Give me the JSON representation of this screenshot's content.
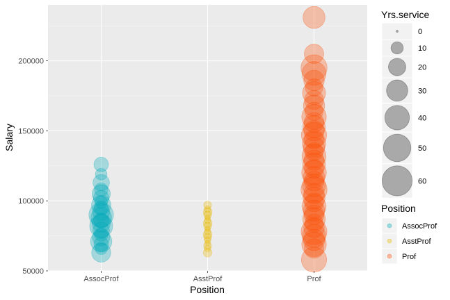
{
  "chart_data": {
    "type": "scatter",
    "x_categories": [
      "AssocProf",
      "AsstProf",
      "Prof"
    ],
    "xlabel": "Position",
    "ylabel": "Salary",
    "ylim": [
      50000,
      240000
    ],
    "yticks": [
      50000,
      100000,
      150000,
      200000
    ],
    "ytick_labels": [
      "50000",
      "100000",
      "150000",
      "200000"
    ],
    "grid": true,
    "point_alpha": 0.3,
    "size_legend": {
      "title": "Yrs.service",
      "values": [
        0,
        10,
        20,
        30,
        40,
        50,
        60
      ],
      "labels": [
        "0",
        "10",
        "20",
        "30",
        "40",
        "50",
        "60"
      ],
      "placement": "right"
    },
    "color_legend": {
      "title": "Position",
      "placement": "right",
      "entries": [
        {
          "label": "AssocProf",
          "color": "#00A9B8"
        },
        {
          "label": "AsstProf",
          "color": "#E7B800"
        },
        {
          "label": "Prof",
          "color": "#FC4E07"
        }
      ]
    },
    "series": [
      {
        "category": "AssocProf",
        "color": "#00A9B8",
        "points": [
          {
            "y": 126000,
            "s": 14
          },
          {
            "y": 119000,
            "s": 9
          },
          {
            "y": 113000,
            "s": 18
          },
          {
            "y": 108000,
            "s": 12
          },
          {
            "y": 105000,
            "s": 22
          },
          {
            "y": 102000,
            "s": 16
          },
          {
            "y": 99000,
            "s": 10
          },
          {
            "y": 97000,
            "s": 25
          },
          {
            "y": 95000,
            "s": 13
          },
          {
            "y": 92000,
            "s": 19
          },
          {
            "y": 90000,
            "s": 40
          },
          {
            "y": 88000,
            "s": 28
          },
          {
            "y": 86000,
            "s": 15
          },
          {
            "y": 84000,
            "s": 22
          },
          {
            "y": 82000,
            "s": 35
          },
          {
            "y": 79000,
            "s": 18
          },
          {
            "y": 76000,
            "s": 12
          },
          {
            "y": 74000,
            "s": 20
          },
          {
            "y": 71000,
            "s": 30
          },
          {
            "y": 69000,
            "s": 14
          },
          {
            "y": 66000,
            "s": 10
          },
          {
            "y": 63000,
            "s": 24
          }
        ]
      },
      {
        "category": "AsstProf",
        "color": "#E7B800",
        "points": [
          {
            "y": 97000,
            "s": 4
          },
          {
            "y": 94000,
            "s": 3
          },
          {
            "y": 92000,
            "s": 5
          },
          {
            "y": 90000,
            "s": 4
          },
          {
            "y": 88000,
            "s": 2
          },
          {
            "y": 86000,
            "s": 3
          },
          {
            "y": 84000,
            "s": 5
          },
          {
            "y": 82000,
            "s": 4
          },
          {
            "y": 80000,
            "s": 2
          },
          {
            "y": 78000,
            "s": 3
          },
          {
            "y": 76000,
            "s": 5
          },
          {
            "y": 74000,
            "s": 4
          },
          {
            "y": 72000,
            "s": 3
          },
          {
            "y": 70000,
            "s": 2
          },
          {
            "y": 68000,
            "s": 4
          },
          {
            "y": 66000,
            "s": 3
          },
          {
            "y": 63000,
            "s": 5
          }
        ]
      },
      {
        "category": "Prof",
        "color": "#FC4E07",
        "points": [
          {
            "y": 231000,
            "s": 32
          },
          {
            "y": 205000,
            "s": 25
          },
          {
            "y": 195000,
            "s": 45
          },
          {
            "y": 191000,
            "s": 38
          },
          {
            "y": 186000,
            "s": 28
          },
          {
            "y": 181000,
            "s": 20
          },
          {
            "y": 177000,
            "s": 35
          },
          {
            "y": 172000,
            "s": 24
          },
          {
            "y": 168000,
            "s": 30
          },
          {
            "y": 164000,
            "s": 22
          },
          {
            "y": 160000,
            "s": 40
          },
          {
            "y": 156000,
            "s": 26
          },
          {
            "y": 153000,
            "s": 33
          },
          {
            "y": 150000,
            "s": 28
          },
          {
            "y": 147000,
            "s": 42
          },
          {
            "y": 144000,
            "s": 25
          },
          {
            "y": 141000,
            "s": 36
          },
          {
            "y": 138000,
            "s": 30
          },
          {
            "y": 135000,
            "s": 22
          },
          {
            "y": 132000,
            "s": 38
          },
          {
            "y": 129000,
            "s": 27
          },
          {
            "y": 126000,
            "s": 34
          },
          {
            "y": 123000,
            "s": 24
          },
          {
            "y": 120000,
            "s": 40
          },
          {
            "y": 117000,
            "s": 30
          },
          {
            "y": 114000,
            "s": 26
          },
          {
            "y": 111000,
            "s": 35
          },
          {
            "y": 108000,
            "s": 45
          },
          {
            "y": 105000,
            "s": 28
          },
          {
            "y": 102000,
            "s": 32
          },
          {
            "y": 99000,
            "s": 24
          },
          {
            "y": 96000,
            "s": 38
          },
          {
            "y": 93000,
            "s": 30
          },
          {
            "y": 90000,
            "s": 26
          },
          {
            "y": 87000,
            "s": 34
          },
          {
            "y": 84000,
            "s": 22
          },
          {
            "y": 81000,
            "s": 28
          },
          {
            "y": 78000,
            "s": 44
          },
          {
            "y": 75000,
            "s": 36
          },
          {
            "y": 72000,
            "s": 30
          },
          {
            "y": 69000,
            "s": 40
          },
          {
            "y": 66000,
            "s": 25
          },
          {
            "y": 58000,
            "s": 42
          }
        ]
      }
    ]
  }
}
